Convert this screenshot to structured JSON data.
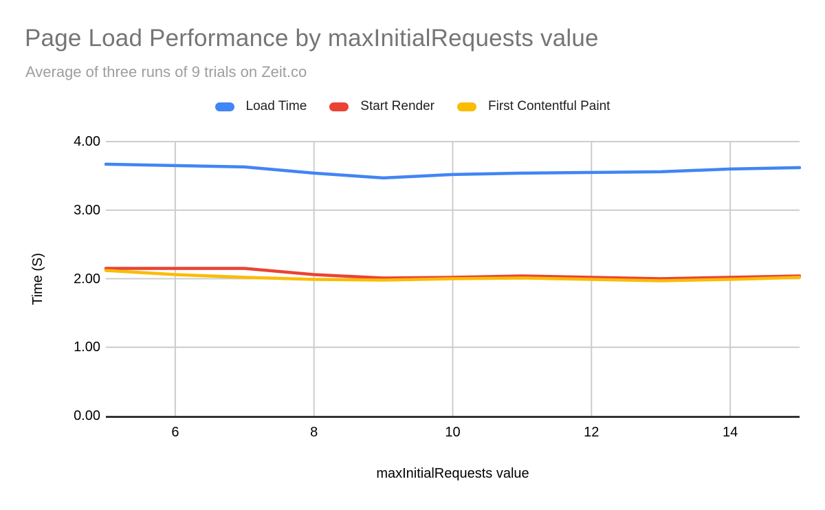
{
  "header": {
    "title": "Page Load Performance by maxInitialRequests value",
    "subtitle": "Average of three runs of 9 trials on Zeit.co"
  },
  "chart_data": {
    "type": "line",
    "title": "Page Load Performance by maxInitialRequests value",
    "subtitle": "Average of three runs of 9 trials on Zeit.co",
    "xlabel": "maxInitialRequests value",
    "ylabel": "Time (S)",
    "xlim": [
      5,
      15
    ],
    "ylim": [
      0,
      4
    ],
    "grid": true,
    "legend_position": "top",
    "x": [
      5,
      6,
      7,
      8,
      9,
      10,
      11,
      12,
      13,
      14,
      15
    ],
    "x_ticks": [
      6,
      8,
      10,
      12,
      14
    ],
    "y_ticks": [
      {
        "value": 0,
        "label": "0.00"
      },
      {
        "value": 1,
        "label": "1.00"
      },
      {
        "value": 2,
        "label": "2.00"
      },
      {
        "value": 3,
        "label": "3.00"
      },
      {
        "value": 4,
        "label": "4.00"
      }
    ],
    "y_grid_values": [
      1,
      2,
      3,
      4
    ],
    "series": [
      {
        "name": "Load Time",
        "color": "#4285F4",
        "values": [
          3.67,
          3.65,
          3.63,
          3.54,
          3.47,
          3.52,
          3.54,
          3.55,
          3.56,
          3.6,
          3.62
        ]
      },
      {
        "name": "Start Render",
        "color": "#EA4335",
        "values": [
          2.15,
          2.15,
          2.15,
          2.06,
          2.01,
          2.02,
          2.04,
          2.02,
          2.0,
          2.02,
          2.04
        ]
      },
      {
        "name": "First Contentful Paint",
        "color": "#FBBC04",
        "values": [
          2.12,
          2.06,
          2.02,
          1.99,
          1.98,
          2.0,
          2.01,
          1.99,
          1.97,
          1.99,
          2.02
        ]
      }
    ]
  },
  "colors": {
    "title": "#757575",
    "subtitle": "#9E9E9E",
    "grid": "#CCCCCC",
    "axis": "#333333",
    "text": "#000000",
    "background": "#FFFFFF"
  }
}
